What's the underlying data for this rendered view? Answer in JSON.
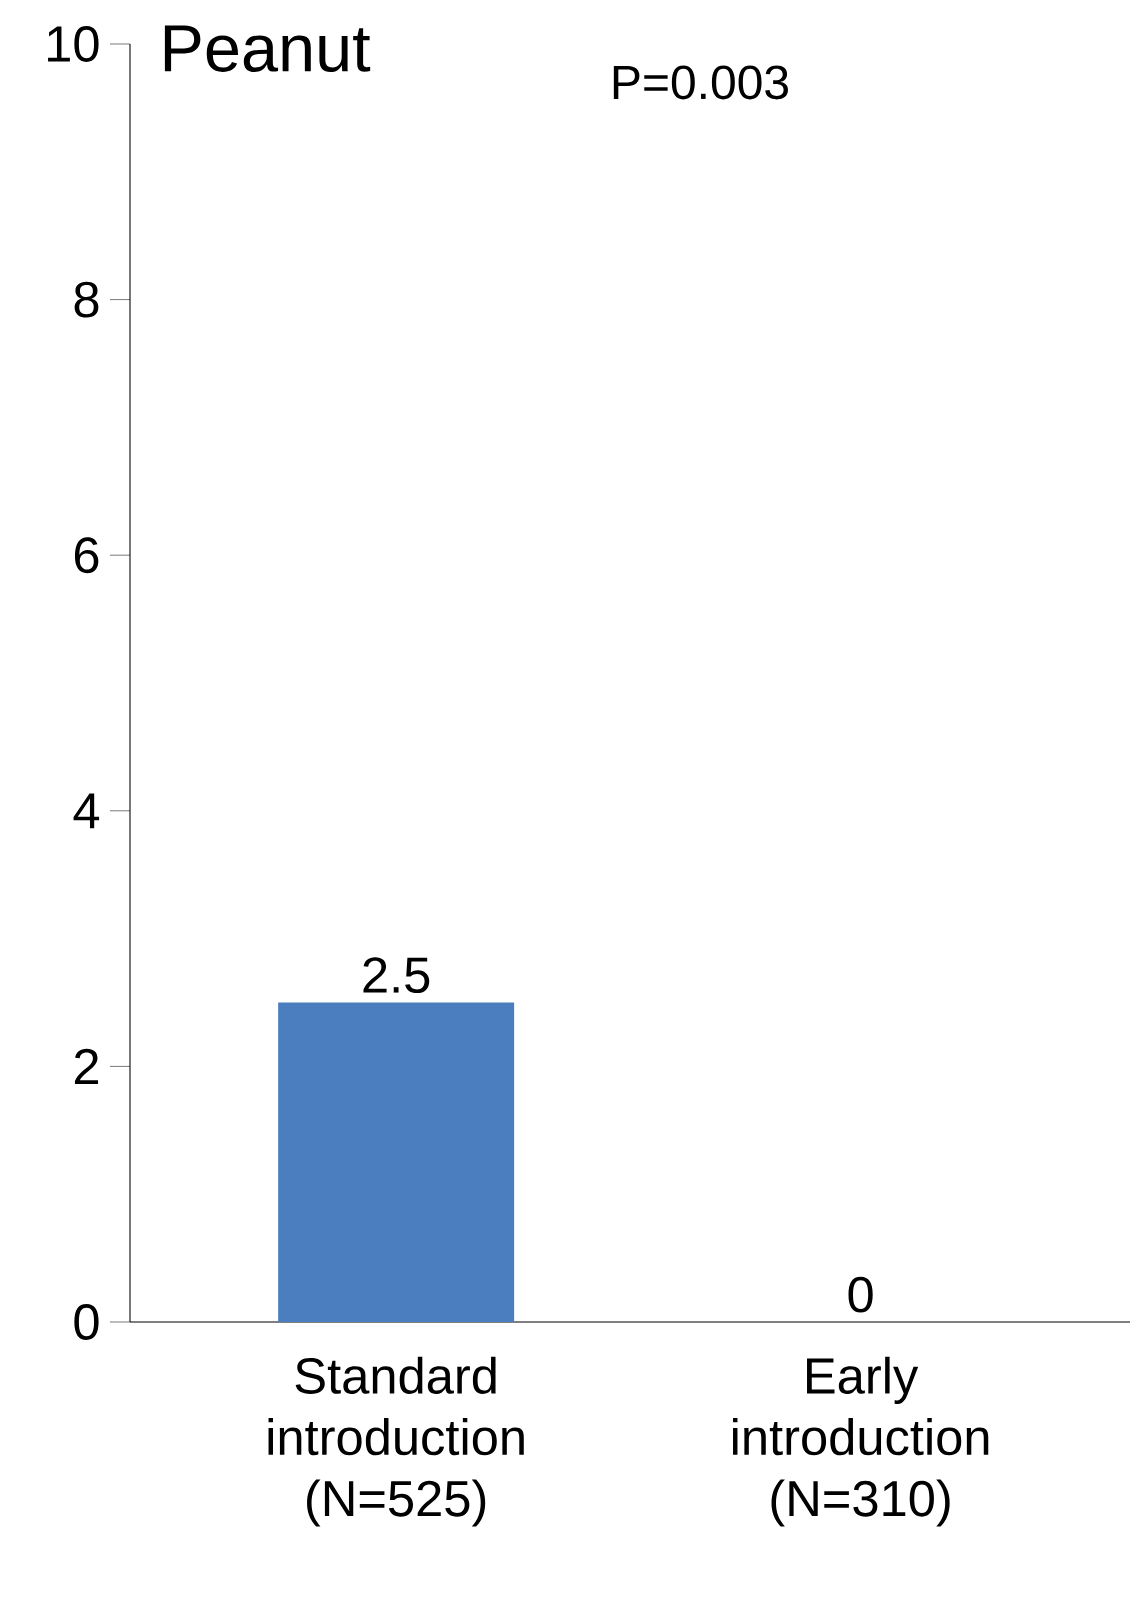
{
  "chart_data": {
    "type": "bar",
    "title": "Peanut",
    "categories": [
      "Standard introduction (N=525)",
      "Early introduction (N=310)"
    ],
    "values": [
      2.5,
      0
    ],
    "color": "#4a7ebf",
    "ylim": [
      0,
      10
    ],
    "yticks": [
      0,
      2,
      4,
      6,
      8,
      10
    ],
    "data_labels": true,
    "annotations": [
      "P=0.003"
    ]
  }
}
